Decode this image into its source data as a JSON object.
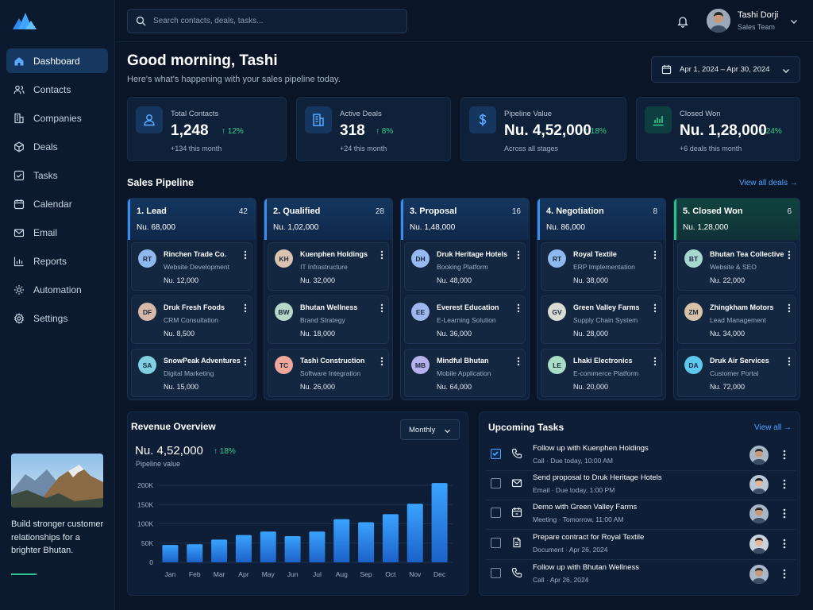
{
  "search": {
    "placeholder": "Search contacts, deals, tasks..."
  },
  "user": {
    "name": "Tashi Dorji",
    "role": "Sales Team"
  },
  "nav": [
    {
      "label": "Dashboard",
      "icon": "home-icon"
    },
    {
      "label": "Contacts",
      "icon": "users-icon"
    },
    {
      "label": "Companies",
      "icon": "building-icon"
    },
    {
      "label": "Deals",
      "icon": "box-icon"
    },
    {
      "label": "Tasks",
      "icon": "checkbox-icon"
    },
    {
      "label": "Calendar",
      "icon": "calendar-icon"
    },
    {
      "label": "Email",
      "icon": "mail-icon"
    },
    {
      "label": "Reports",
      "icon": "bar-chart-icon"
    },
    {
      "label": "Automation",
      "icon": "cog-automation-icon"
    },
    {
      "label": "Settings",
      "icon": "gear-icon"
    }
  ],
  "promo": {
    "text": "Build stronger customer relationships for a brighter Bhutan."
  },
  "header": {
    "greeting": "Good morning, Tashi",
    "subtitle": "Here's what's happening with your sales pipeline today.",
    "date_range": "Apr 1, 2024 – Apr 30, 2024"
  },
  "stats": [
    {
      "label": "Total Contacts",
      "value": "1,248",
      "change": "12%",
      "sub": "+134 this month",
      "icon": "user-icon"
    },
    {
      "label": "Active Deals",
      "value": "318",
      "change": "8%",
      "sub": "+24 this month",
      "icon": "building-icon"
    },
    {
      "label": "Pipeline Value",
      "value": "Nu. 4,52,000",
      "change": "18%",
      "sub": "Across all stages",
      "icon": "dollar-icon"
    },
    {
      "label": "Closed Won",
      "value": "Nu. 1,28,000",
      "change": "24%",
      "sub": "+6 deals this month",
      "icon": "bar-chart-icon"
    }
  ],
  "pipeline": {
    "title": "Sales Pipeline",
    "view_all": "View all deals",
    "columns": [
      {
        "name": "1. Lead",
        "count": "42",
        "amount": "Nu. 68,000",
        "cards": [
          {
            "initials": "RT",
            "name": "Rinchen Trade Co.",
            "sub": "Website Development",
            "value": "Nu. 12,000",
            "color": "#8fb8ec"
          },
          {
            "initials": "DF",
            "name": "Druk Fresh Foods",
            "sub": "CRM Consultation",
            "value": "Nu. 8,500",
            "color": "#d7b7a7"
          },
          {
            "initials": "SA",
            "name": "SnowPeak Adventures",
            "sub": "Digital Marketing",
            "value": "Nu. 15,000",
            "color": "#7fd0e0"
          }
        ]
      },
      {
        "name": "2. Qualified",
        "count": "28",
        "amount": "Nu. 1,02,000",
        "cards": [
          {
            "initials": "KH",
            "name": "Kuenphen Holdings",
            "sub": "IT Infrastructure",
            "value": "Nu. 32,000",
            "color": "#d9c3ae"
          },
          {
            "initials": "BW",
            "name": "Bhutan Wellness",
            "sub": "Brand Strategy",
            "value": "Nu. 18,000",
            "color": "#b7d7c9"
          },
          {
            "initials": "TC",
            "name": "Tashi Construction",
            "sub": "Software Integration",
            "value": "Nu. 26,000",
            "color": "#f0a79b"
          }
        ]
      },
      {
        "name": "3. Proposal",
        "count": "16",
        "amount": "Nu. 1,48,000",
        "cards": [
          {
            "initials": "DH",
            "name": "Druk Heritage Hotels",
            "sub": "Booking Platform",
            "value": "Nu. 48,000",
            "color": "#95b9f0"
          },
          {
            "initials": "EE",
            "name": "Everest Education",
            "sub": "E-Learning Solution",
            "value": "Nu. 36,000",
            "color": "#9fb6ee"
          },
          {
            "initials": "MB",
            "name": "Mindful Bhutan",
            "sub": "Mobile Application",
            "value": "Nu. 64,000",
            "color": "#b7b2ec"
          }
        ]
      },
      {
        "name": "4. Negotiation",
        "count": "8",
        "amount": "Nu. 86,000",
        "cards": [
          {
            "initials": "RT",
            "name": "Royal Textile",
            "sub": "ERP Implementation",
            "value": "Nu. 38,000",
            "color": "#8fb8ec"
          },
          {
            "initials": "GV",
            "name": "Green Valley Farms",
            "sub": "Supply Chain System",
            "value": "Nu. 28,000",
            "color": "#d8ddd4"
          },
          {
            "initials": "LE",
            "name": "Lhaki Electronics",
            "sub": "E-commerce Platform",
            "value": "Nu. 20,000",
            "color": "#a9dcc5"
          }
        ]
      },
      {
        "name": "5. Closed Won",
        "count": "6",
        "amount": "Nu. 1,28,000",
        "cards": [
          {
            "initials": "BT",
            "name": "Bhutan Tea Collective",
            "sub": "Website & SEO",
            "value": "Nu. 22,000",
            "color": "#a5d8cf"
          },
          {
            "initials": "ZM",
            "name": "Zhingkham Motors",
            "sub": "Lead Management",
            "value": "Nu. 34,000",
            "color": "#d7c2a8"
          },
          {
            "initials": "DA",
            "name": "Druk Air Services",
            "sub": "Customer Portal",
            "value": "Nu. 72,000",
            "color": "#5cc8ee"
          }
        ]
      }
    ]
  },
  "revenue": {
    "title": "Revenue Overview",
    "period": "Monthly",
    "value": "Nu. 4,52,000",
    "change": "18%",
    "sub": "Pipeline value"
  },
  "chart_data": {
    "type": "bar",
    "categories": [
      "Jan",
      "Feb",
      "Mar",
      "Apr",
      "May",
      "Jun",
      "Jul",
      "Aug",
      "Sep",
      "Oct",
      "Nov",
      "Dec"
    ],
    "values": [
      45,
      47,
      59,
      71,
      80,
      68,
      80,
      112,
      104,
      125,
      152,
      206
    ],
    "ylim": [
      0,
      200
    ],
    "yticks": [
      "0",
      "50K",
      "100K",
      "150K",
      "200K"
    ],
    "grid": true
  },
  "tasks": {
    "title": "Upcoming Tasks",
    "view_all": "View all",
    "items": [
      {
        "title": "Follow up with Kuenphen Holdings",
        "sub": "Call · Due today, 10:00 AM",
        "checked": true,
        "icon": "phone-icon"
      },
      {
        "title": "Send proposal to Druk Heritage Hotels",
        "sub": "Email · Due today, 1:00 PM",
        "checked": false,
        "icon": "mail-icon"
      },
      {
        "title": "Demo with Green Valley Farms",
        "sub": "Meeting · Tomorrow, 11:00 AM",
        "checked": false,
        "icon": "calendar-icon"
      },
      {
        "title": "Prepare contract for Royal Textile",
        "sub": "Document · Apr 26, 2024",
        "checked": false,
        "icon": "document-icon"
      },
      {
        "title": "Follow up with Bhutan Wellness",
        "sub": "Call · Apr 26, 2024",
        "checked": false,
        "icon": "phone-icon"
      }
    ]
  },
  "colors": {
    "accent": "#3b8ef0",
    "positive": "#2fd08a",
    "background": "#0a1628"
  }
}
